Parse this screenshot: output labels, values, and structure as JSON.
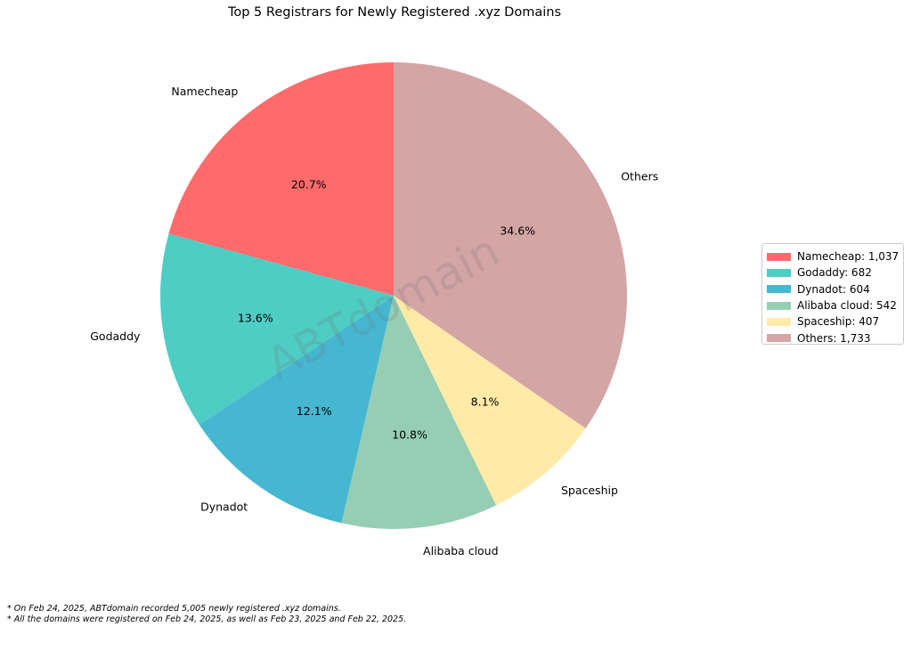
{
  "chart_data": {
    "type": "pie",
    "title": "Top 5 Registrars for Newly Registered .xyz Domains",
    "categories": [
      "Namecheap",
      "Godaddy",
      "Dynadot",
      "Alibaba cloud",
      "Spaceship",
      "Others"
    ],
    "values": [
      1037,
      682,
      604,
      542,
      407,
      1733
    ],
    "percent_labels": [
      "20.7%",
      "13.6%",
      "12.1%",
      "10.8%",
      "8.1%",
      "34.6%"
    ],
    "colors": [
      "#FF6B6B",
      "#4ECDC4",
      "#45B7D1",
      "#96CEB4",
      "#FFEAA7",
      "#D4A5A5"
    ],
    "start_angle_deg": 90,
    "direction": "counterclockwise",
    "legend": {
      "placement": "right",
      "entries": [
        "Namecheap: 1,037",
        "Godaddy: 682",
        "Dynadot: 604",
        "Alibaba cloud: 542",
        "Spaceship: 407",
        "Others: 1,733"
      ]
    }
  },
  "watermark": "ABTdomain",
  "notes": [
    "* On Feb 24, 2025, ABTdomain recorded 5,005 newly registered .xyz domains.",
    "* All the domains were registered on Feb 24, 2025, as well as Feb 23, 2025 and Feb 22, 2025."
  ]
}
